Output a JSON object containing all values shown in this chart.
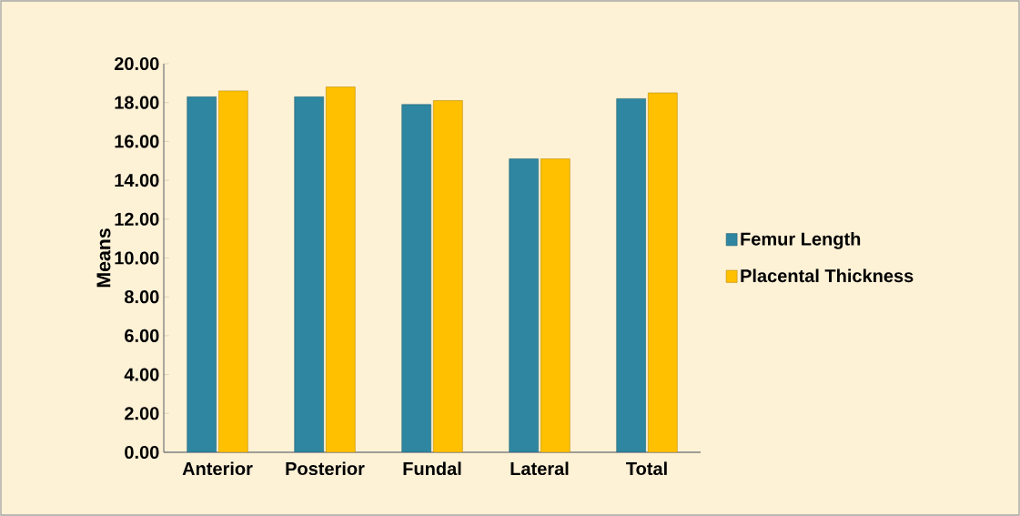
{
  "chart_data": {
    "type": "bar",
    "ylabel": "Means",
    "categories": [
      "Anterior",
      "Posterior",
      "Fundal",
      "Lateral",
      "Total"
    ],
    "series": [
      {
        "name": "Femur Length",
        "color": "#2e86a0",
        "values": [
          18.3,
          18.3,
          17.9,
          15.1,
          18.2
        ]
      },
      {
        "name": "Placental Thickness",
        "color": "#ffc000",
        "values": [
          18.6,
          18.8,
          18.1,
          15.1,
          18.5
        ]
      }
    ],
    "ylim": [
      0,
      20
    ],
    "yticks": [
      {
        "value": 0,
        "label": "0.00"
      },
      {
        "value": 2,
        "label": "2.00"
      },
      {
        "value": 4,
        "label": "4.00"
      },
      {
        "value": 6,
        "label": "6.00"
      },
      {
        "value": 8,
        "label": "8.00"
      },
      {
        "value": 10,
        "label": "10.00"
      },
      {
        "value": 12,
        "label": "12.00"
      },
      {
        "value": 14,
        "label": "14.00"
      },
      {
        "value": 16,
        "label": "16.00"
      },
      {
        "value": 18,
        "label": "18.00"
      },
      {
        "value": 20,
        "label": "20.00"
      }
    ],
    "grid": false,
    "legend": "right"
  }
}
